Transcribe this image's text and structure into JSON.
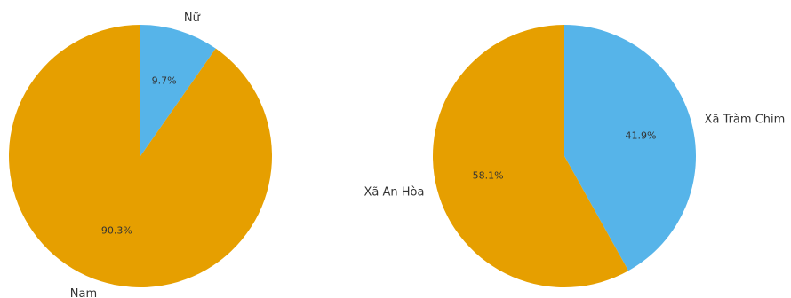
{
  "chart_data": [
    {
      "type": "pie",
      "title": "",
      "categories": [
        "Nữ",
        "Nam"
      ],
      "values": [
        9.7,
        90.3
      ],
      "labels": [
        "9.7%",
        "90.3%"
      ],
      "colors": [
        "#56B4E9",
        "#E69F00"
      ],
      "start_angle_deg": 90,
      "direction": "clockwise"
    },
    {
      "type": "pie",
      "title": "",
      "categories": [
        "Xã Tràm Chim",
        "Xã An Hòa"
      ],
      "values": [
        41.9,
        58.1
      ],
      "labels": [
        "41.9%",
        "58.1%"
      ],
      "colors": [
        "#56B4E9",
        "#E69F00"
      ],
      "start_angle_deg": 90,
      "direction": "clockwise"
    }
  ]
}
